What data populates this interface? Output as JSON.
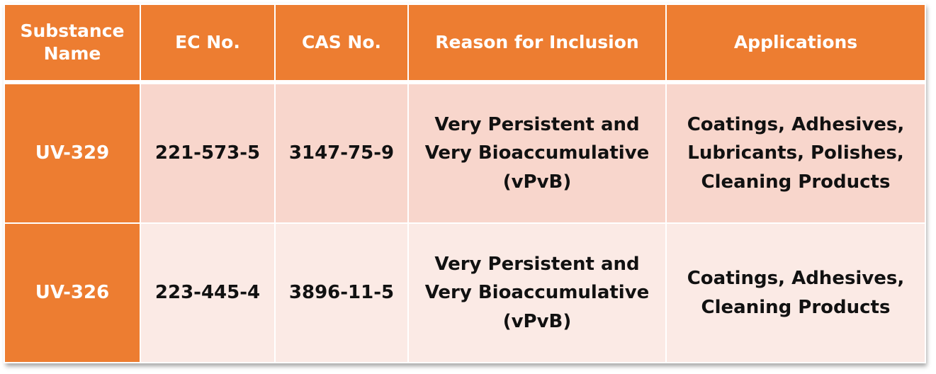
{
  "table": {
    "headers": [
      [
        "Substance",
        "Name"
      ],
      [
        "EC No."
      ],
      [
        "CAS No."
      ],
      [
        "Reason for Inclusion"
      ],
      [
        "Applications"
      ]
    ],
    "rows": [
      {
        "substance": "UV-329",
        "ec_no": "221-573-5",
        "cas_no": "3147-75-9",
        "reason": [
          "Very Persistent and",
          "Very Bioaccumulative",
          "(vPvB)"
        ],
        "applications": [
          "Coatings, Adhesives,",
          "Lubricants, Polishes,",
          "Cleaning Products"
        ]
      },
      {
        "substance": "UV-326",
        "ec_no": "223-445-4",
        "cas_no": "3896-11-5",
        "reason": [
          "Very Persistent and",
          "Very Bioaccumulative",
          "(vPvB)"
        ],
        "applications": [
          "Coatings, Adhesives,",
          "Cleaning Products"
        ]
      }
    ]
  },
  "colors": {
    "header_bg": "#ED7D31",
    "row1_bg": "#F8D6CC",
    "row2_bg": "#FBEAE5",
    "header_text": "#FFFFFF",
    "body_text": "#111111"
  }
}
